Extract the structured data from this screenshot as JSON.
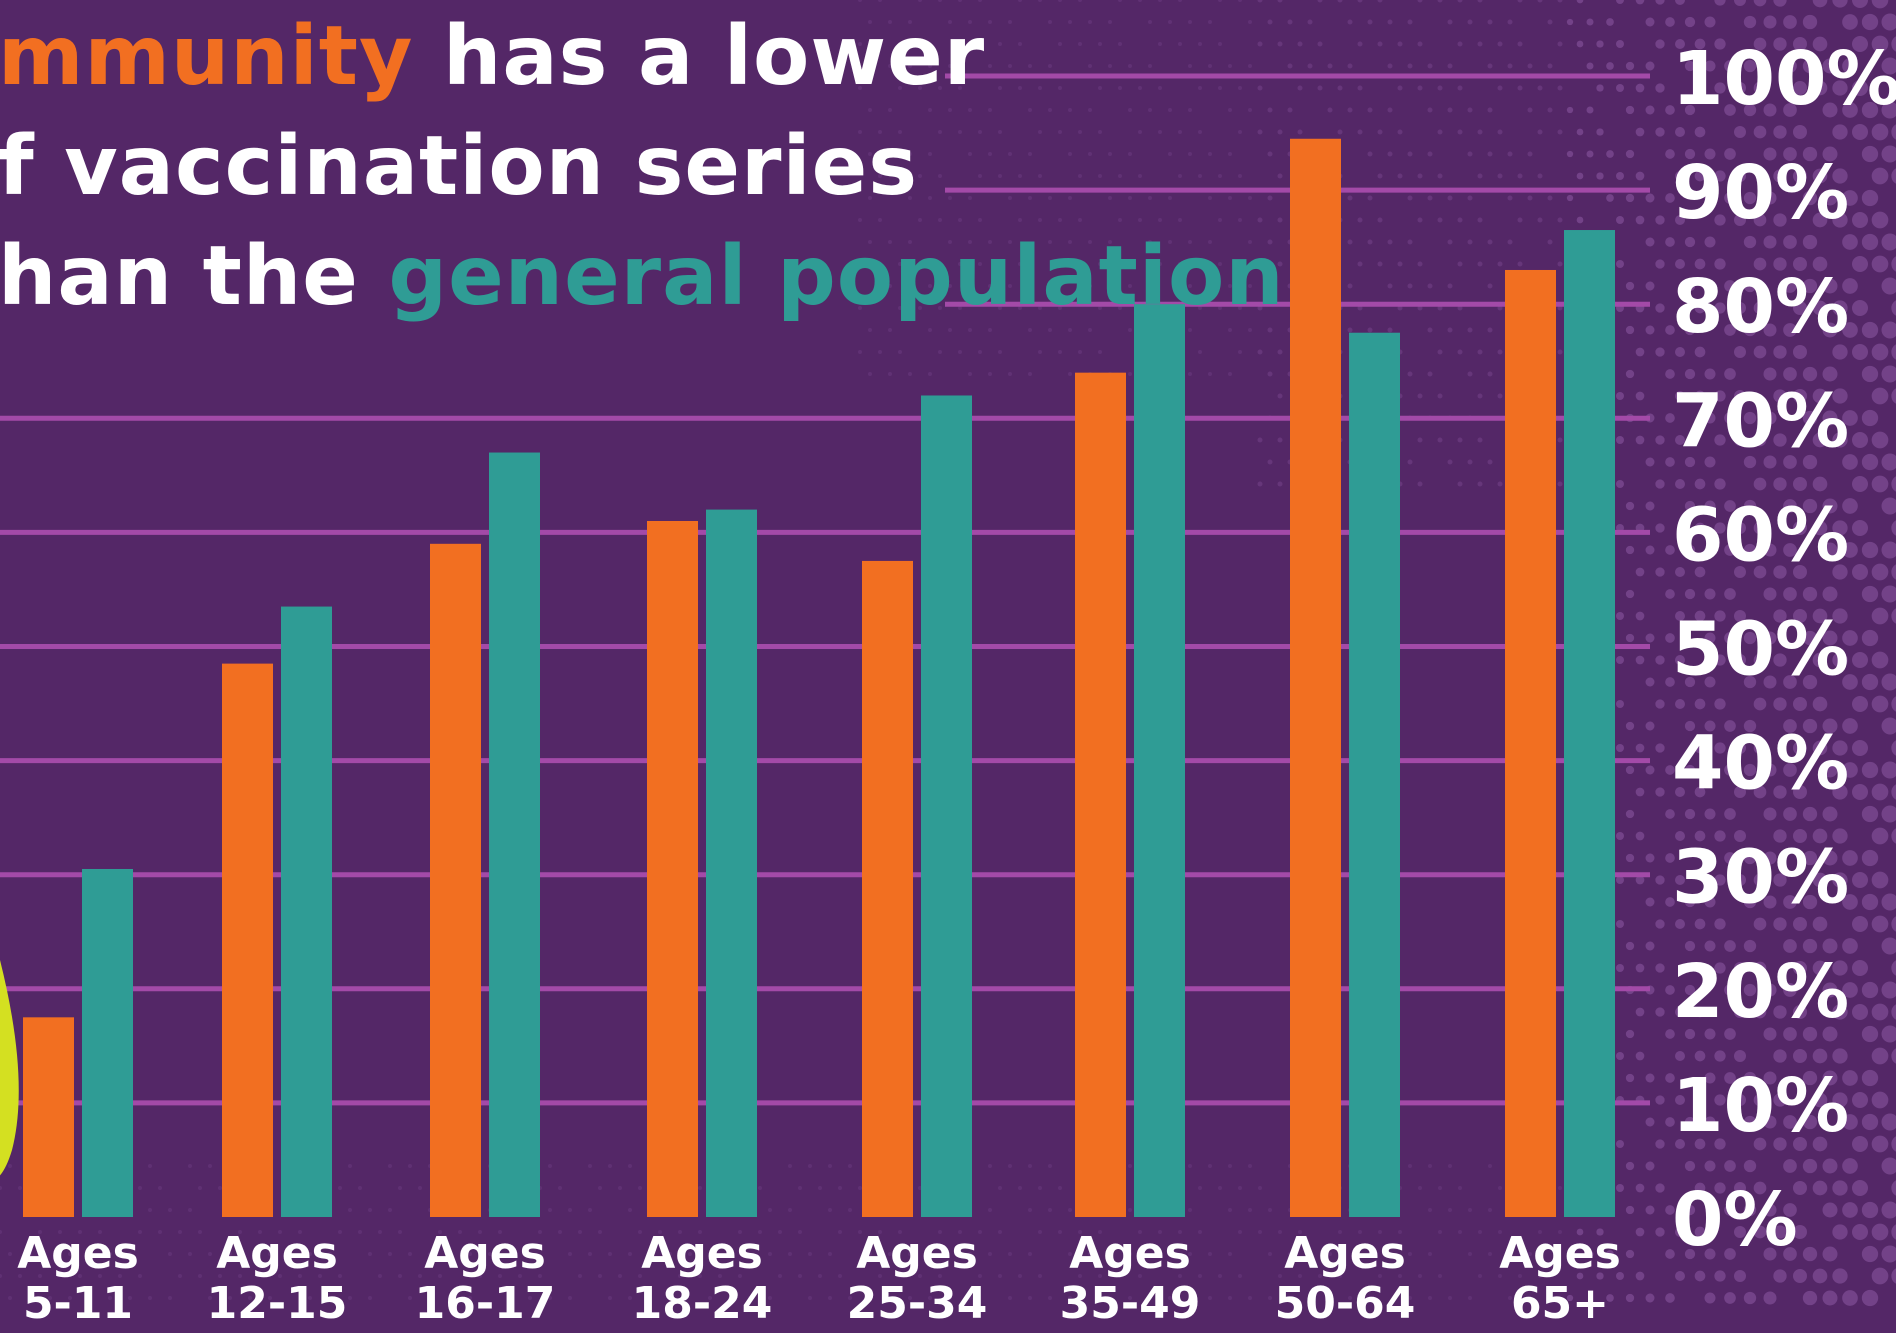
{
  "title": {
    "line1_highlight": "mmunity",
    "line1_rest": " has a lower",
    "line2": "f vaccination series",
    "line3_prefix": "han the ",
    "line3_highlight": "general population"
  },
  "colors": {
    "background": "#542767",
    "gridline": "#a34aa8",
    "community": "#f26f21",
    "general_population": "#2f9c95",
    "decoration": "#d4e021"
  },
  "chart_data": {
    "type": "bar",
    "categories": [
      [
        "Ages",
        "5-11"
      ],
      [
        "Ages",
        "12-15"
      ],
      [
        "Ages",
        "16-17"
      ],
      [
        "Ages",
        "18-24"
      ],
      [
        "Ages",
        "25-34"
      ],
      [
        "Ages",
        "35-49"
      ],
      [
        "Ages",
        "50-64"
      ],
      [
        "Ages",
        "65+"
      ]
    ],
    "series": [
      {
        "values": [
          17.5,
          48.5,
          59,
          61,
          57.5,
          74,
          94.5,
          83
        ]
      },
      {
        "values": [
          30.5,
          53.5,
          67,
          62,
          72,
          80,
          77.5,
          86.5
        ]
      }
    ],
    "ylim": [
      0,
      100
    ],
    "yticks": [
      "100%",
      "90%",
      "80%",
      "70%",
      "60%",
      "50%",
      "40%",
      "30%",
      "20%",
      "10%",
      "0%"
    ],
    "grid": true,
    "y_axis_side": "right"
  }
}
